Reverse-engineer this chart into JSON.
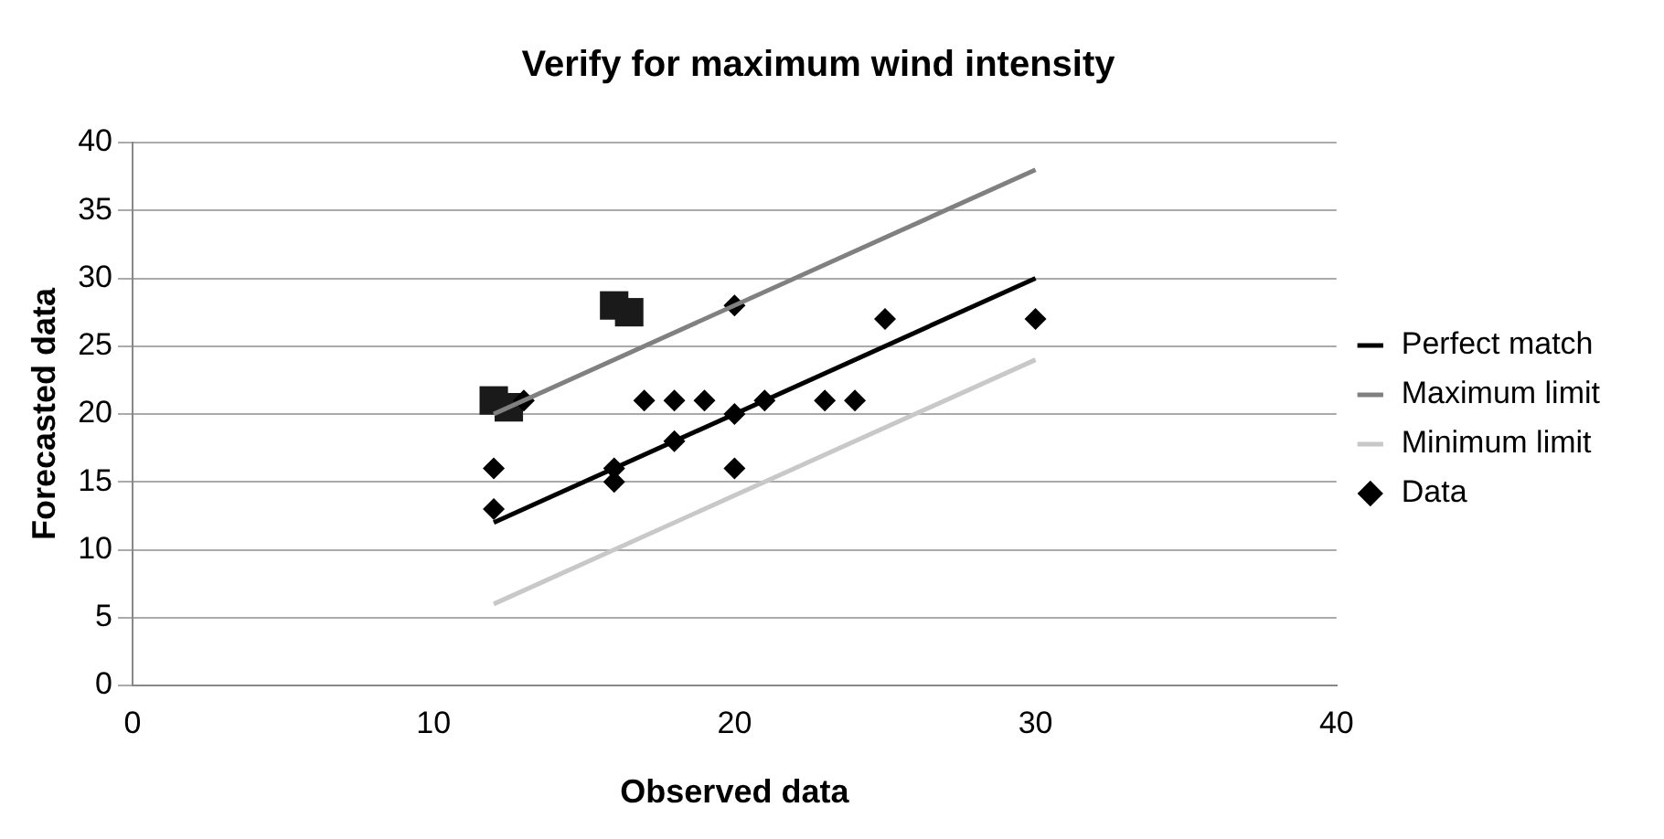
{
  "chart_data": {
    "type": "scatter",
    "title": "Verify for maximum wind intensity",
    "xlabel": "Observed data",
    "ylabel": "Forecasted data",
    "xlim": [
      0,
      40
    ],
    "xticks": [
      0,
      10,
      20,
      30,
      40
    ],
    "ylim": [
      0,
      40
    ],
    "yticks": [
      0,
      5,
      10,
      15,
      20,
      25,
      30,
      35,
      40
    ],
    "grid": "y",
    "legend": "right",
    "series": [
      {
        "name": "Perfect match",
        "type": "line",
        "color": "#000000",
        "marker": "none",
        "x": [
          12,
          30
        ],
        "values": [
          12,
          30
        ]
      },
      {
        "name": "Maximum limit",
        "type": "line",
        "color": "#808080",
        "marker": "none",
        "x": [
          12,
          30
        ],
        "values": [
          20,
          38
        ]
      },
      {
        "name": "Minimum limit",
        "type": "line",
        "color": "#c8c8c8",
        "marker": "none",
        "x": [
          12,
          30
        ],
        "values": [
          6,
          24
        ]
      },
      {
        "name": "Data",
        "color": "#000000",
        "marker": "diamond",
        "x": [
          12,
          12,
          13,
          16,
          16,
          17,
          18,
          18,
          19,
          20,
          20,
          20,
          21,
          23,
          24,
          25,
          30
        ],
        "values": [
          13,
          16,
          21,
          16,
          15,
          21,
          21,
          18,
          21,
          28,
          20,
          16,
          21,
          21,
          21,
          27,
          27
        ]
      },
      {
        "color": "#1a1a1a",
        "marker": "square",
        "x": [
          12,
          12.5,
          16,
          16.5
        ],
        "values": [
          21,
          20.5,
          28,
          27.5
        ]
      }
    ]
  }
}
